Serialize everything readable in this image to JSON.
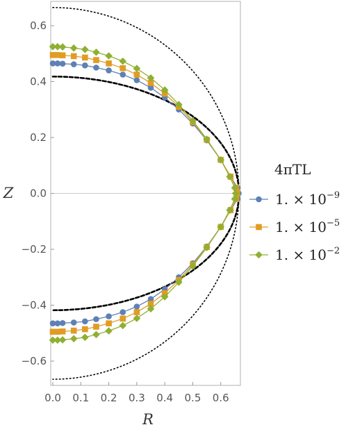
{
  "chart_data": {
    "type": "line",
    "xlabel": "R",
    "ylabel": "Z",
    "xlim": [
      0,
      0.68
    ],
    "ylim": [
      -0.675,
      0.675
    ],
    "x_ticks": [
      "0.0",
      "0.1",
      "0.2",
      "0.3",
      "0.4",
      "0.5",
      "0.6"
    ],
    "x_tick_values": [
      0,
      0.1,
      0.2,
      0.3,
      0.4,
      0.5,
      0.6
    ],
    "y_ticks": [
      "0.6",
      "0.4",
      "0.2",
      "0.0",
      "−0.2",
      "−0.4",
      "−0.6"
    ],
    "y_tick_values": [
      0.6,
      0.4,
      0.2,
      0,
      -0.2,
      -0.4,
      -0.6
    ],
    "grid": false,
    "legend": {
      "title": "4πTL",
      "placement": "right",
      "entries": [
        {
          "label": "1. × 10",
          "exponent": "−9",
          "marker": "circle",
          "color": "#5e81b5"
        },
        {
          "label": "1. × 10",
          "exponent": "−5",
          "marker": "square",
          "color": "#e19c24"
        },
        {
          "label": "1. × 10",
          "exponent": "−2",
          "marker": "diamond",
          "color": "#8fb032"
        }
      ]
    },
    "reference_curves": [
      {
        "style": "dashed",
        "color": "#000000",
        "R": 0.665,
        "Zscale": 0.418
      },
      {
        "style": "dotted",
        "color": "#000000",
        "R": 0.665,
        "Zscale": 0.665
      }
    ],
    "series": [
      {
        "color": "#5e81b5",
        "marker": "circle",
        "x": [
          0,
          0.017,
          0.035,
          0.075,
          0.115,
          0.155,
          0.2,
          0.25,
          0.3,
          0.35,
          0.4,
          0.45,
          0.5,
          0.55,
          0.6,
          0.635,
          0.66,
          0.664,
          0.66,
          0.635,
          0.6,
          0.55,
          0.5,
          0.45,
          0.4,
          0.35,
          0.3,
          0.25,
          0.2,
          0.155,
          0.115,
          0.075,
          0.035,
          0.017,
          0
        ],
        "y": [
          0.465,
          0.465,
          0.464,
          0.462,
          0.458,
          0.45,
          0.44,
          0.425,
          0.405,
          0.378,
          0.343,
          0.3,
          0.25,
          0.19,
          0.12,
          0.06,
          0.02,
          0.0,
          -0.02,
          -0.06,
          -0.12,
          -0.19,
          -0.25,
          -0.3,
          -0.343,
          -0.378,
          -0.405,
          -0.425,
          -0.44,
          -0.45,
          -0.458,
          -0.462,
          -0.464,
          -0.465,
          -0.465
        ]
      },
      {
        "color": "#e19c24",
        "marker": "square",
        "x": [
          0,
          0.017,
          0.035,
          0.075,
          0.115,
          0.155,
          0.2,
          0.25,
          0.3,
          0.35,
          0.4,
          0.45,
          0.5,
          0.55,
          0.6,
          0.635,
          0.655,
          0.658,
          0.655,
          0.635,
          0.6,
          0.55,
          0.5,
          0.45,
          0.4,
          0.35,
          0.3,
          0.25,
          0.2,
          0.155,
          0.115,
          0.075,
          0.035,
          0.017,
          0
        ],
        "y": [
          0.495,
          0.495,
          0.494,
          0.491,
          0.486,
          0.477,
          0.465,
          0.448,
          0.425,
          0.395,
          0.357,
          0.31,
          0.255,
          0.192,
          0.12,
          0.06,
          0.02,
          0.0,
          -0.02,
          -0.06,
          -0.12,
          -0.192,
          -0.255,
          -0.31,
          -0.357,
          -0.395,
          -0.425,
          -0.448,
          -0.465,
          -0.477,
          -0.486,
          -0.491,
          -0.494,
          -0.495,
          -0.495
        ]
      },
      {
        "color": "#8fb032",
        "marker": "diamond",
        "x": [
          0,
          0.017,
          0.035,
          0.075,
          0.115,
          0.155,
          0.2,
          0.25,
          0.3,
          0.35,
          0.4,
          0.45,
          0.5,
          0.55,
          0.6,
          0.632,
          0.65,
          0.653,
          0.65,
          0.632,
          0.6,
          0.55,
          0.5,
          0.45,
          0.4,
          0.35,
          0.3,
          0.25,
          0.2,
          0.155,
          0.115,
          0.075,
          0.035,
          0.017,
          0
        ],
        "y": [
          0.525,
          0.525,
          0.524,
          0.52,
          0.515,
          0.505,
          0.492,
          0.473,
          0.447,
          0.413,
          0.37,
          0.318,
          0.26,
          0.194,
          0.12,
          0.06,
          0.02,
          0.0,
          -0.02,
          -0.06,
          -0.12,
          -0.194,
          -0.26,
          -0.318,
          -0.37,
          -0.413,
          -0.447,
          -0.473,
          -0.492,
          -0.505,
          -0.515,
          -0.52,
          -0.524,
          -0.525,
          -0.525
        ]
      }
    ]
  }
}
